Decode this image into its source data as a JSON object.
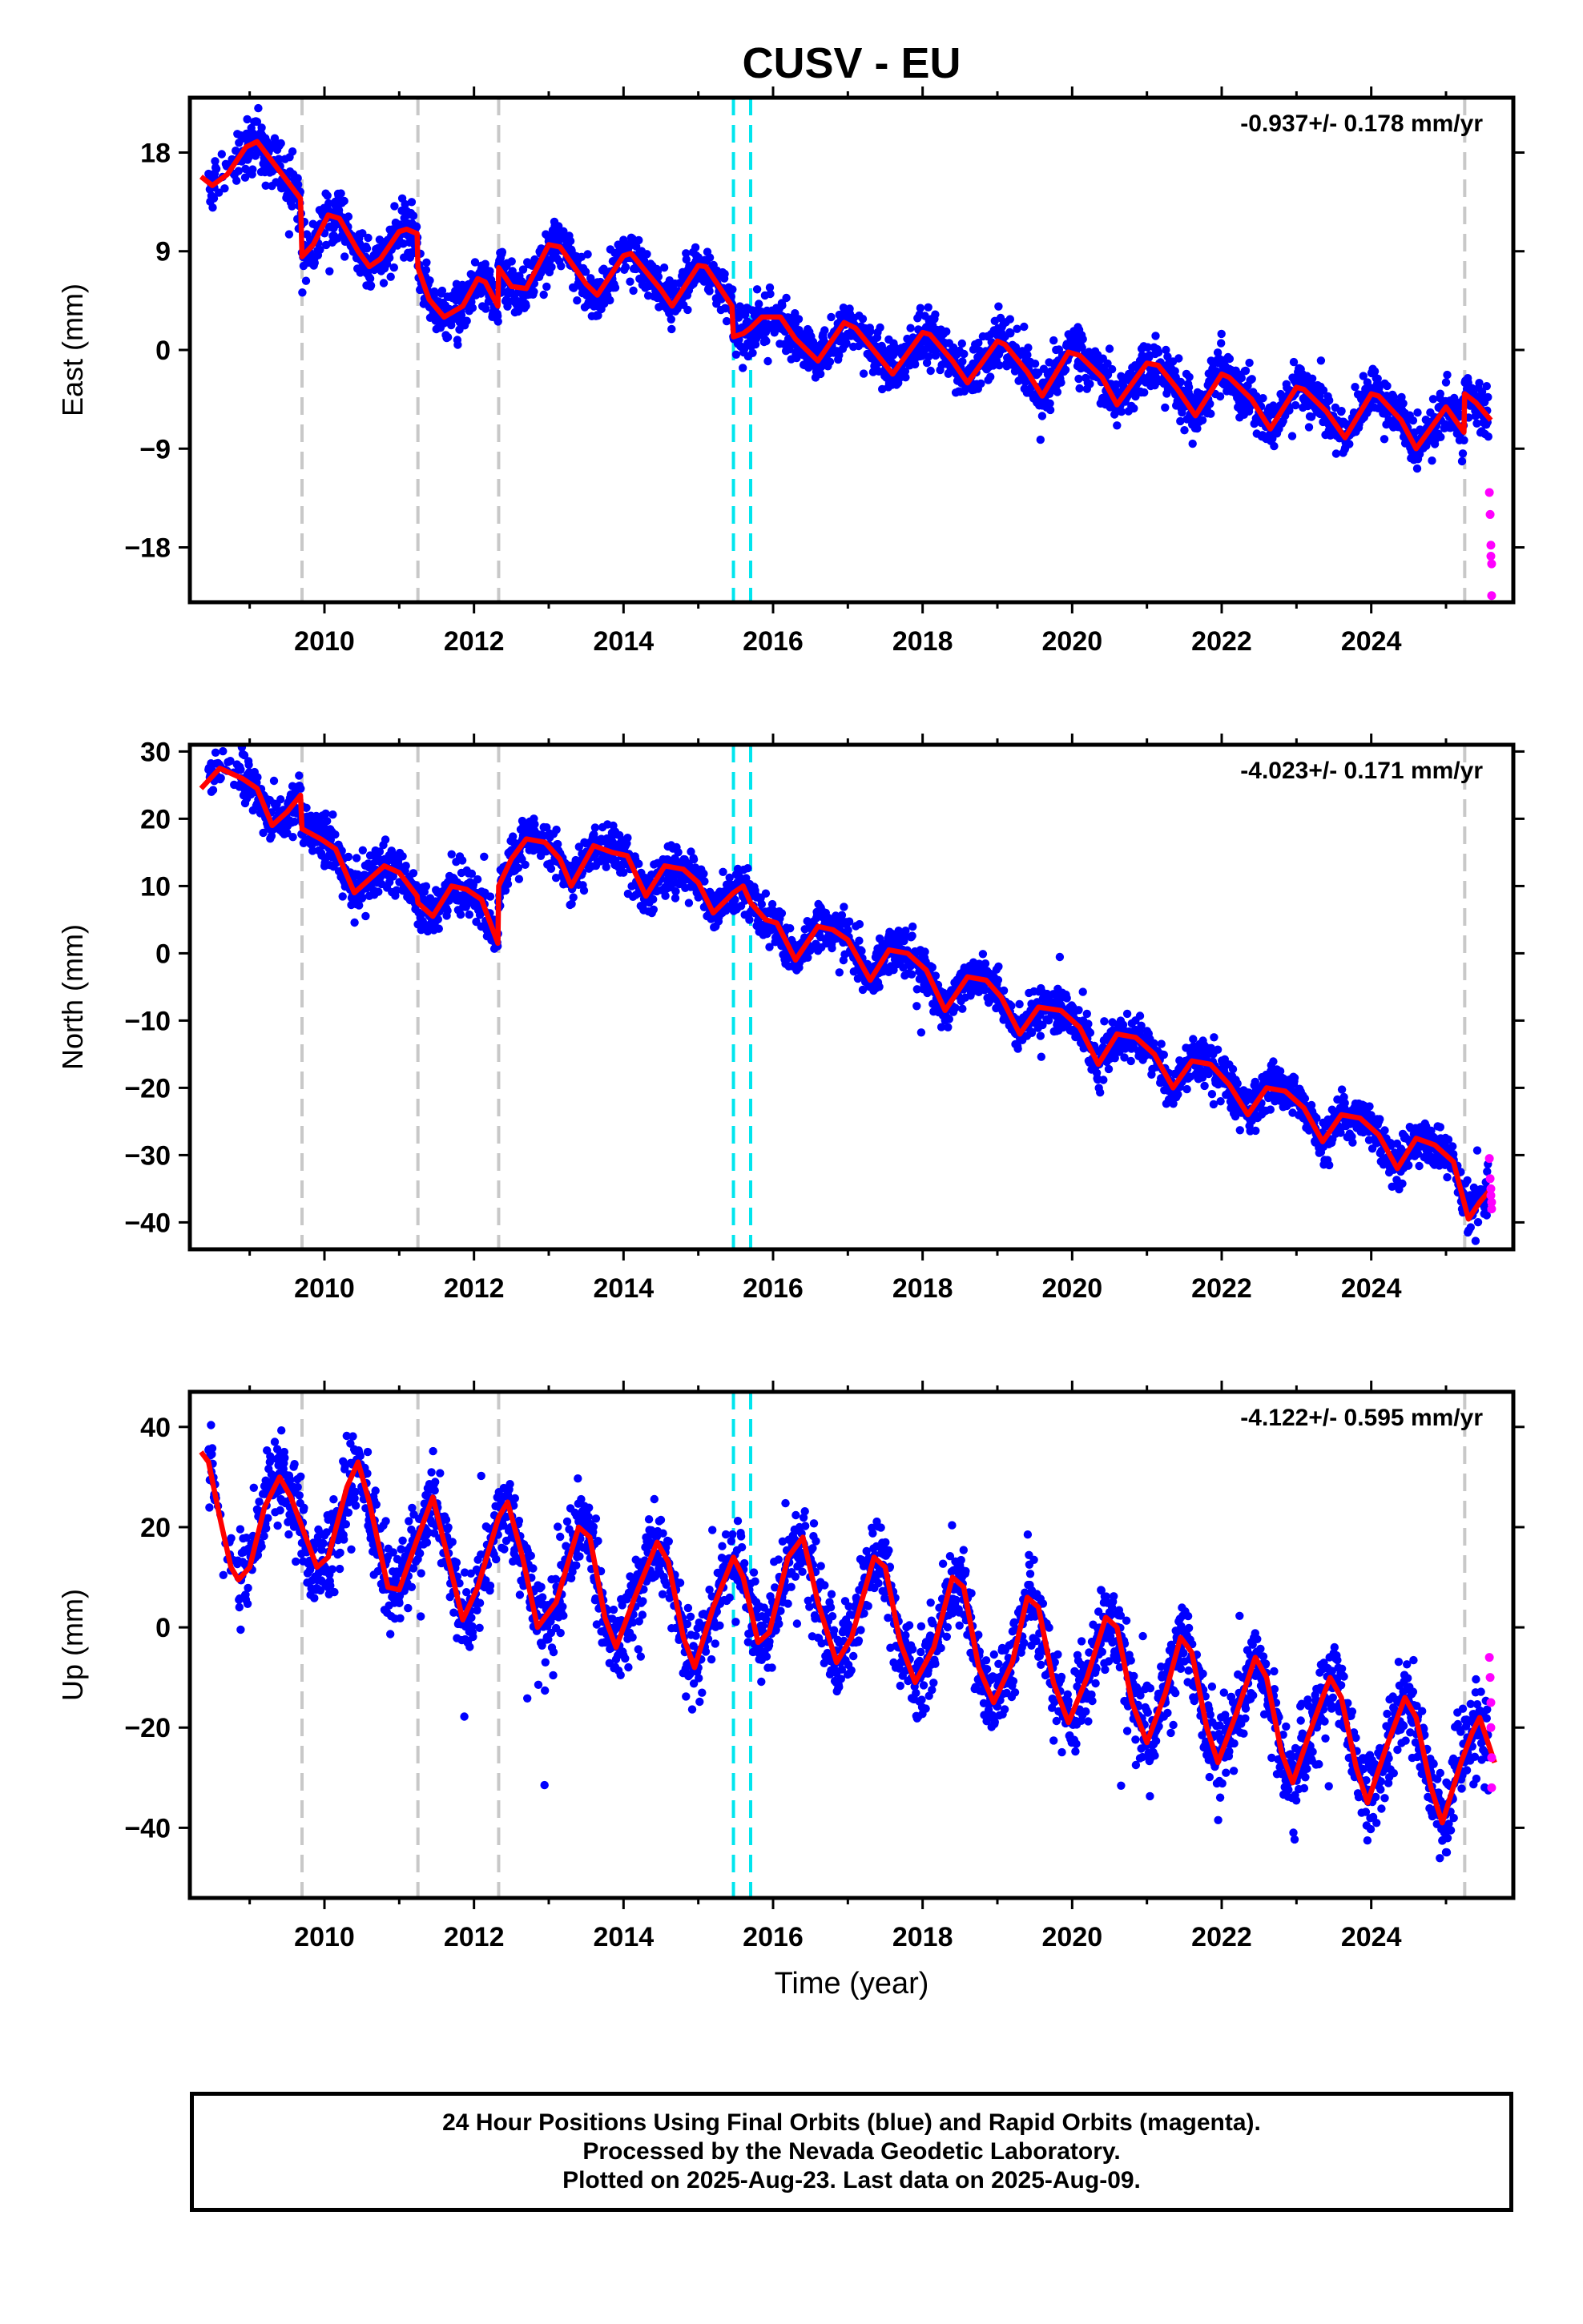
{
  "title": "CUSV - EU",
  "x_axis_label": "Time (year)",
  "footer_lines": [
    "24 Hour Positions Using Final Orbits (blue) and Rapid Orbits (magenta).",
    "Processed by the Nevada Geodetic Laboratory.",
    "Plotted on 2025-Aug-23. Last data on 2025-Aug-09."
  ],
  "colors": {
    "final": "#0000ff",
    "rapid": "#ff00ff",
    "model": "#ff0000",
    "equipment_change": "#c8c8c8",
    "earthquake": "#00e5ee"
  },
  "chart_data": [
    {
      "type": "scatter",
      "component": "East",
      "ylabel": "East (mm)",
      "rate_text": "-0.937+/- 0.178 mm/yr",
      "xlim": [
        2008.2,
        2025.9
      ],
      "ylim": [
        -23,
        23
      ],
      "yticks": [
        18,
        9,
        0,
        -9,
        -18
      ],
      "ytick_labels": [
        "18",
        "9",
        "0",
        "−9",
        "−18"
      ],
      "xticks": [
        2010,
        2012,
        2014,
        2016,
        2018,
        2020,
        2022,
        2024
      ],
      "xtick_labels": [
        "2010",
        "2012",
        "2014",
        "2016",
        "2018",
        "2020",
        "2022",
        "2024"
      ],
      "gray_lines": [
        2009.7,
        2011.25,
        2012.33,
        2025.25
      ],
      "cyan_lines": [
        2015.47,
        2015.7
      ],
      "model_knots": [
        [
          2008.35,
          15.8
        ],
        [
          2008.5,
          15.0
        ],
        [
          2008.7,
          16.0
        ],
        [
          2008.95,
          18.5
        ],
        [
          2009.1,
          19.0
        ],
        [
          2009.68,
          13.8
        ],
        [
          2009.7,
          8.5
        ],
        [
          2009.85,
          9.6
        ],
        [
          2010.05,
          12.3
        ],
        [
          2010.2,
          12.0
        ],
        [
          2010.45,
          9.0
        ],
        [
          2010.6,
          7.6
        ],
        [
          2010.75,
          8.3
        ],
        [
          2011.0,
          10.8
        ],
        [
          2011.1,
          11.0
        ],
        [
          2011.24,
          10.6
        ],
        [
          2011.25,
          7.5
        ],
        [
          2011.4,
          4.6
        ],
        [
          2011.6,
          3.0
        ],
        [
          2011.85,
          4.0
        ],
        [
          2012.05,
          6.5
        ],
        [
          2012.15,
          6.2
        ],
        [
          2012.32,
          4.0
        ],
        [
          2012.33,
          7.5
        ],
        [
          2012.5,
          5.8
        ],
        [
          2012.7,
          5.6
        ],
        [
          2013.0,
          9.6
        ],
        [
          2013.15,
          9.4
        ],
        [
          2013.5,
          6.0
        ],
        [
          2013.65,
          5.0
        ],
        [
          2014.0,
          8.6
        ],
        [
          2014.1,
          8.8
        ],
        [
          2014.5,
          5.5
        ],
        [
          2014.65,
          4.0
        ],
        [
          2015.0,
          7.7
        ],
        [
          2015.1,
          7.6
        ],
        [
          2015.45,
          4.0
        ],
        [
          2015.47,
          1.2
        ],
        [
          2015.6,
          1.5
        ],
        [
          2015.7,
          2.0
        ],
        [
          2015.85,
          3.0
        ],
        [
          2016.1,
          3.0
        ],
        [
          2016.3,
          1.0
        ],
        [
          2016.6,
          -1.0
        ],
        [
          2016.95,
          2.5
        ],
        [
          2017.1,
          2.0
        ],
        [
          2017.4,
          -0.5
        ],
        [
          2017.6,
          -2.2
        ],
        [
          2018.0,
          1.6
        ],
        [
          2018.1,
          1.4
        ],
        [
          2018.4,
          -1.0
        ],
        [
          2018.6,
          -3.0
        ],
        [
          2019.0,
          0.8
        ],
        [
          2019.1,
          0.5
        ],
        [
          2019.4,
          -2.0
        ],
        [
          2019.6,
          -4.2
        ],
        [
          2019.95,
          -0.2
        ],
        [
          2020.1,
          -0.5
        ],
        [
          2020.4,
          -2.5
        ],
        [
          2020.6,
          -5.0
        ],
        [
          2021.0,
          -1.2
        ],
        [
          2021.15,
          -1.4
        ],
        [
          2021.4,
          -3.5
        ],
        [
          2021.65,
          -6.0
        ],
        [
          2022.0,
          -2.2
        ],
        [
          2022.1,
          -2.5
        ],
        [
          2022.4,
          -4.5
        ],
        [
          2022.65,
          -7.2
        ],
        [
          2023.0,
          -3.4
        ],
        [
          2023.1,
          -3.6
        ],
        [
          2023.4,
          -5.6
        ],
        [
          2023.65,
          -8.0
        ],
        [
          2024.0,
          -4.0
        ],
        [
          2024.1,
          -4.2
        ],
        [
          2024.4,
          -6.4
        ],
        [
          2024.6,
          -9.0
        ],
        [
          2025.0,
          -5.2
        ],
        [
          2025.24,
          -7.5
        ],
        [
          2025.25,
          -4.0
        ],
        [
          2025.4,
          -4.8
        ],
        [
          2025.6,
          -6.4
        ]
      ],
      "rapid_points": [
        [
          2025.58,
          -13.0
        ],
        [
          2025.59,
          -15.0
        ],
        [
          2025.6,
          -17.8
        ],
        [
          2025.6,
          -18.8
        ],
        [
          2025.61,
          -19.5
        ],
        [
          2025.61,
          -22.4
        ]
      ]
    },
    {
      "type": "scatter",
      "component": "North",
      "ylabel": "North (mm)",
      "rate_text": "-4.023+/- 0.171 mm/yr",
      "xlim": [
        2008.2,
        2025.9
      ],
      "ylim": [
        -44,
        31
      ],
      "yticks": [
        30,
        20,
        10,
        0,
        -10,
        -20,
        -30,
        -40
      ],
      "ytick_labels": [
        "30",
        "20",
        "10",
        "0",
        "−10",
        "−20",
        "−30",
        "−40"
      ],
      "xticks": [
        2010,
        2012,
        2014,
        2016,
        2018,
        2020,
        2022,
        2024
      ],
      "xtick_labels": [
        "2010",
        "2012",
        "2014",
        "2016",
        "2018",
        "2020",
        "2022",
        "2024"
      ],
      "gray_lines": [
        2009.7,
        2011.25,
        2012.33,
        2025.25
      ],
      "cyan_lines": [
        2015.47,
        2015.7
      ],
      "model_knots": [
        [
          2008.35,
          24.5
        ],
        [
          2008.6,
          27.5
        ],
        [
          2008.9,
          26.0
        ],
        [
          2009.1,
          24.5
        ],
        [
          2009.3,
          19.0
        ],
        [
          2009.5,
          21.0
        ],
        [
          2009.68,
          23.5
        ],
        [
          2009.7,
          18.5
        ],
        [
          2009.95,
          17.0
        ],
        [
          2010.15,
          15.5
        ],
        [
          2010.4,
          9.0
        ],
        [
          2010.6,
          11.0
        ],
        [
          2010.8,
          13.0
        ],
        [
          2011.0,
          12.0
        ],
        [
          2011.24,
          8.5
        ],
        [
          2011.25,
          7.5
        ],
        [
          2011.45,
          5.5
        ],
        [
          2011.7,
          10.0
        ],
        [
          2011.9,
          9.5
        ],
        [
          2012.1,
          8.0
        ],
        [
          2012.32,
          1.5
        ],
        [
          2012.33,
          10.0
        ],
        [
          2012.5,
          14.0
        ],
        [
          2012.7,
          17.0
        ],
        [
          2012.95,
          16.5
        ],
        [
          2013.15,
          14.0
        ],
        [
          2013.3,
          10.0
        ],
        [
          2013.6,
          16.0
        ],
        [
          2013.85,
          15.0
        ],
        [
          2014.05,
          14.5
        ],
        [
          2014.3,
          8.5
        ],
        [
          2014.55,
          13.0
        ],
        [
          2014.8,
          12.5
        ],
        [
          2015.0,
          10.5
        ],
        [
          2015.2,
          6.0
        ],
        [
          2015.47,
          9.0
        ],
        [
          2015.6,
          10.0
        ],
        [
          2015.7,
          7.5
        ],
        [
          2015.9,
          5.0
        ],
        [
          2016.05,
          4.5
        ],
        [
          2016.3,
          -1.0
        ],
        [
          2016.6,
          4.0
        ],
        [
          2016.8,
          3.5
        ],
        [
          2017.0,
          2.0
        ],
        [
          2017.3,
          -4.0
        ],
        [
          2017.55,
          0.5
        ],
        [
          2017.8,
          0.0
        ],
        [
          2018.05,
          -2.5
        ],
        [
          2018.3,
          -8.5
        ],
        [
          2018.6,
          -3.5
        ],
        [
          2018.85,
          -4.0
        ],
        [
          2019.05,
          -6.5
        ],
        [
          2019.3,
          -12.0
        ],
        [
          2019.55,
          -8.0
        ],
        [
          2019.85,
          -8.5
        ],
        [
          2020.1,
          -11.0
        ],
        [
          2020.35,
          -16.5
        ],
        [
          2020.6,
          -12.0
        ],
        [
          2020.85,
          -12.5
        ],
        [
          2021.1,
          -15.0
        ],
        [
          2021.35,
          -20.0
        ],
        [
          2021.6,
          -16.0
        ],
        [
          2021.85,
          -16.5
        ],
        [
          2022.1,
          -19.5
        ],
        [
          2022.35,
          -24.0
        ],
        [
          2022.6,
          -20.0
        ],
        [
          2022.85,
          -20.5
        ],
        [
          2023.1,
          -23.0
        ],
        [
          2023.35,
          -28.0
        ],
        [
          2023.6,
          -24.0
        ],
        [
          2023.85,
          -24.5
        ],
        [
          2024.1,
          -27.0
        ],
        [
          2024.35,
          -32.0
        ],
        [
          2024.6,
          -27.5
        ],
        [
          2024.85,
          -28.5
        ],
        [
          2025.1,
          -31.0
        ],
        [
          2025.3,
          -39.5
        ],
        [
          2025.45,
          -37.0
        ],
        [
          2025.6,
          -35.0
        ]
      ],
      "rapid_points": [
        [
          2025.58,
          -30.5
        ],
        [
          2025.59,
          -33.5
        ],
        [
          2025.6,
          -35.0
        ],
        [
          2025.6,
          -36.0
        ],
        [
          2025.61,
          -37.0
        ],
        [
          2025.61,
          -38.0
        ]
      ]
    },
    {
      "type": "scatter",
      "component": "Up",
      "ylabel": "Up (mm)",
      "rate_text": "-4.122+/- 0.595 mm/yr",
      "xlim": [
        2008.2,
        2025.9
      ],
      "ylim": [
        -54,
        47
      ],
      "yticks": [
        40,
        20,
        0,
        -20,
        -40
      ],
      "ytick_labels": [
        "40",
        "20",
        "0",
        "−20",
        "−40"
      ],
      "xticks": [
        2010,
        2012,
        2014,
        2016,
        2018,
        2020,
        2022,
        2024
      ],
      "xtick_labels": [
        "2010",
        "2012",
        "2014",
        "2016",
        "2018",
        "2020",
        "2022",
        "2024"
      ],
      "gray_lines": [
        2009.7,
        2011.25,
        2012.33,
        2025.25
      ],
      "cyan_lines": [
        2015.47,
        2015.7
      ],
      "model_knots": [
        [
          2008.35,
          35.0
        ],
        [
          2008.45,
          33.0
        ],
        [
          2008.6,
          22.0
        ],
        [
          2008.75,
          12.0
        ],
        [
          2008.85,
          9.5
        ],
        [
          2009.0,
          12.0
        ],
        [
          2009.2,
          24.0
        ],
        [
          2009.4,
          30.0
        ],
        [
          2009.55,
          26.0
        ],
        [
          2009.7,
          20.0
        ],
        [
          2009.9,
          12.0
        ],
        [
          2010.05,
          14.0
        ],
        [
          2010.3,
          28.0
        ],
        [
          2010.45,
          33.0
        ],
        [
          2010.6,
          25.0
        ],
        [
          2010.85,
          8.0
        ],
        [
          2011.0,
          7.5
        ],
        [
          2011.25,
          18.0
        ],
        [
          2011.45,
          26.0
        ],
        [
          2011.65,
          14.0
        ],
        [
          2011.85,
          1.5
        ],
        [
          2012.05,
          8.0
        ],
        [
          2012.33,
          22.0
        ],
        [
          2012.45,
          25.0
        ],
        [
          2012.65,
          14.0
        ],
        [
          2012.85,
          0.0
        ],
        [
          2013.1,
          5.0
        ],
        [
          2013.4,
          20.0
        ],
        [
          2013.55,
          18.0
        ],
        [
          2013.75,
          2.0
        ],
        [
          2013.9,
          -4.0
        ],
        [
          2014.15,
          6.0
        ],
        [
          2014.45,
          17.0
        ],
        [
          2014.6,
          13.0
        ],
        [
          2014.8,
          -2.0
        ],
        [
          2014.95,
          -8.0
        ],
        [
          2015.2,
          4.0
        ],
        [
          2015.47,
          14.0
        ],
        [
          2015.6,
          10.0
        ],
        [
          2015.8,
          -3.0
        ],
        [
          2015.95,
          -1.0
        ],
        [
          2016.2,
          14.0
        ],
        [
          2016.4,
          18.0
        ],
        [
          2016.6,
          5.0
        ],
        [
          2016.85,
          -7.0
        ],
        [
          2017.05,
          -2.0
        ],
        [
          2017.35,
          14.0
        ],
        [
          2017.5,
          12.0
        ],
        [
          2017.7,
          -3.0
        ],
        [
          2017.9,
          -11.0
        ],
        [
          2018.15,
          -4.0
        ],
        [
          2018.4,
          10.0
        ],
        [
          2018.55,
          8.0
        ],
        [
          2018.75,
          -8.0
        ],
        [
          2018.95,
          -15.0
        ],
        [
          2019.2,
          -7.0
        ],
        [
          2019.4,
          6.0
        ],
        [
          2019.55,
          4.0
        ],
        [
          2019.75,
          -11.0
        ],
        [
          2019.95,
          -19.0
        ],
        [
          2020.2,
          -10.0
        ],
        [
          2020.45,
          2.0
        ],
        [
          2020.6,
          0.0
        ],
        [
          2020.8,
          -15.0
        ],
        [
          2021.0,
          -23.0
        ],
        [
          2021.25,
          -13.0
        ],
        [
          2021.45,
          -2.0
        ],
        [
          2021.6,
          -5.0
        ],
        [
          2021.8,
          -20.0
        ],
        [
          2021.95,
          -27.0
        ],
        [
          2022.2,
          -17.0
        ],
        [
          2022.45,
          -6.0
        ],
        [
          2022.6,
          -10.0
        ],
        [
          2022.8,
          -25.0
        ],
        [
          2022.95,
          -31.0
        ],
        [
          2023.2,
          -20.0
        ],
        [
          2023.45,
          -10.0
        ],
        [
          2023.6,
          -14.0
        ],
        [
          2023.8,
          -28.0
        ],
        [
          2023.95,
          -35.0
        ],
        [
          2024.2,
          -24.0
        ],
        [
          2024.45,
          -14.0
        ],
        [
          2024.6,
          -18.0
        ],
        [
          2024.8,
          -32.0
        ],
        [
          2024.95,
          -39.0
        ],
        [
          2025.2,
          -27.0
        ],
        [
          2025.35,
          -21.0
        ],
        [
          2025.45,
          -18.0
        ],
        [
          2025.65,
          -27.0
        ]
      ],
      "rapid_points": [
        [
          2025.58,
          -6.0
        ],
        [
          2025.59,
          -10.0
        ],
        [
          2025.6,
          -15.0
        ],
        [
          2025.6,
          -20.0
        ],
        [
          2025.61,
          -26.0
        ],
        [
          2025.61,
          -32.0
        ]
      ]
    }
  ]
}
